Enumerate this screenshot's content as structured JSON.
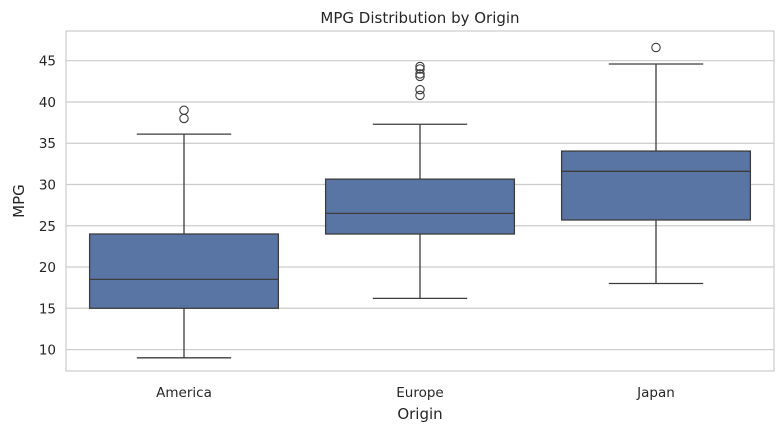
{
  "chart_data": {
    "type": "box",
    "title": "MPG Distribution by Origin",
    "xlabel": "Origin",
    "ylabel": "MPG",
    "ylim": [
      7.4,
      48.6
    ],
    "yticks": [
      10,
      15,
      20,
      25,
      30,
      35,
      40,
      45
    ],
    "grid": "horizontal",
    "box_color": "#5875a4",
    "line_color": "#3d3d3d",
    "categories": [
      "America",
      "Europe",
      "Japan"
    ],
    "boxes": [
      {
        "category": "America",
        "whisker_low": 9.0,
        "q1": 15.0,
        "median": 18.5,
        "q3": 24.0,
        "whisker_high": 36.1,
        "outliers": [
          38.0,
          39.0
        ]
      },
      {
        "category": "Europe",
        "whisker_low": 16.2,
        "q1": 24.0,
        "median": 26.5,
        "q3": 30.65,
        "whisker_high": 37.3,
        "outliers": [
          40.8,
          41.5,
          43.1,
          43.4,
          44.0,
          44.3
        ]
      },
      {
        "category": "Japan",
        "whisker_low": 18.0,
        "q1": 25.7,
        "median": 31.6,
        "q3": 34.05,
        "whisker_high": 44.6,
        "outliers": [
          46.6
        ]
      }
    ]
  }
}
